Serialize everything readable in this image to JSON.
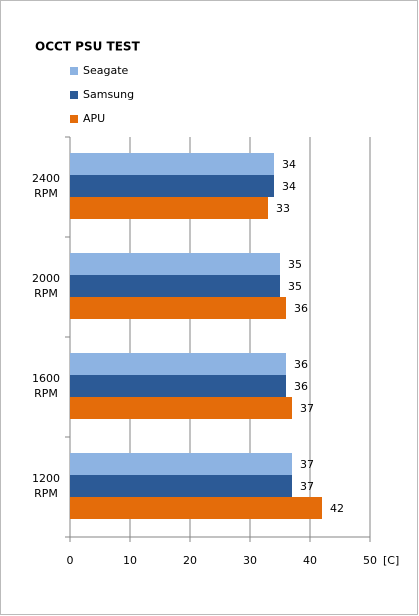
{
  "chart_data": {
    "type": "hbar",
    "title": "OCCT PSU TEST",
    "categories": [
      "2400 RPM",
      "2000 RPM",
      "1600 RPM",
      "1200 RPM"
    ],
    "series": [
      {
        "name": "Seagate",
        "color": "#8db3e2",
        "values": [
          34,
          35,
          36,
          37
        ]
      },
      {
        "name": "Samsung",
        "color": "#2c5a96",
        "values": [
          34,
          35,
          36,
          37
        ]
      },
      {
        "name": "APU",
        "color": "#e46c0a",
        "values": [
          33,
          36,
          37,
          42
        ]
      }
    ],
    "xlim": [
      0,
      50
    ],
    "xticks": [
      0,
      10,
      20,
      30,
      40,
      50
    ],
    "xlabel": "[C]",
    "grid": true
  }
}
